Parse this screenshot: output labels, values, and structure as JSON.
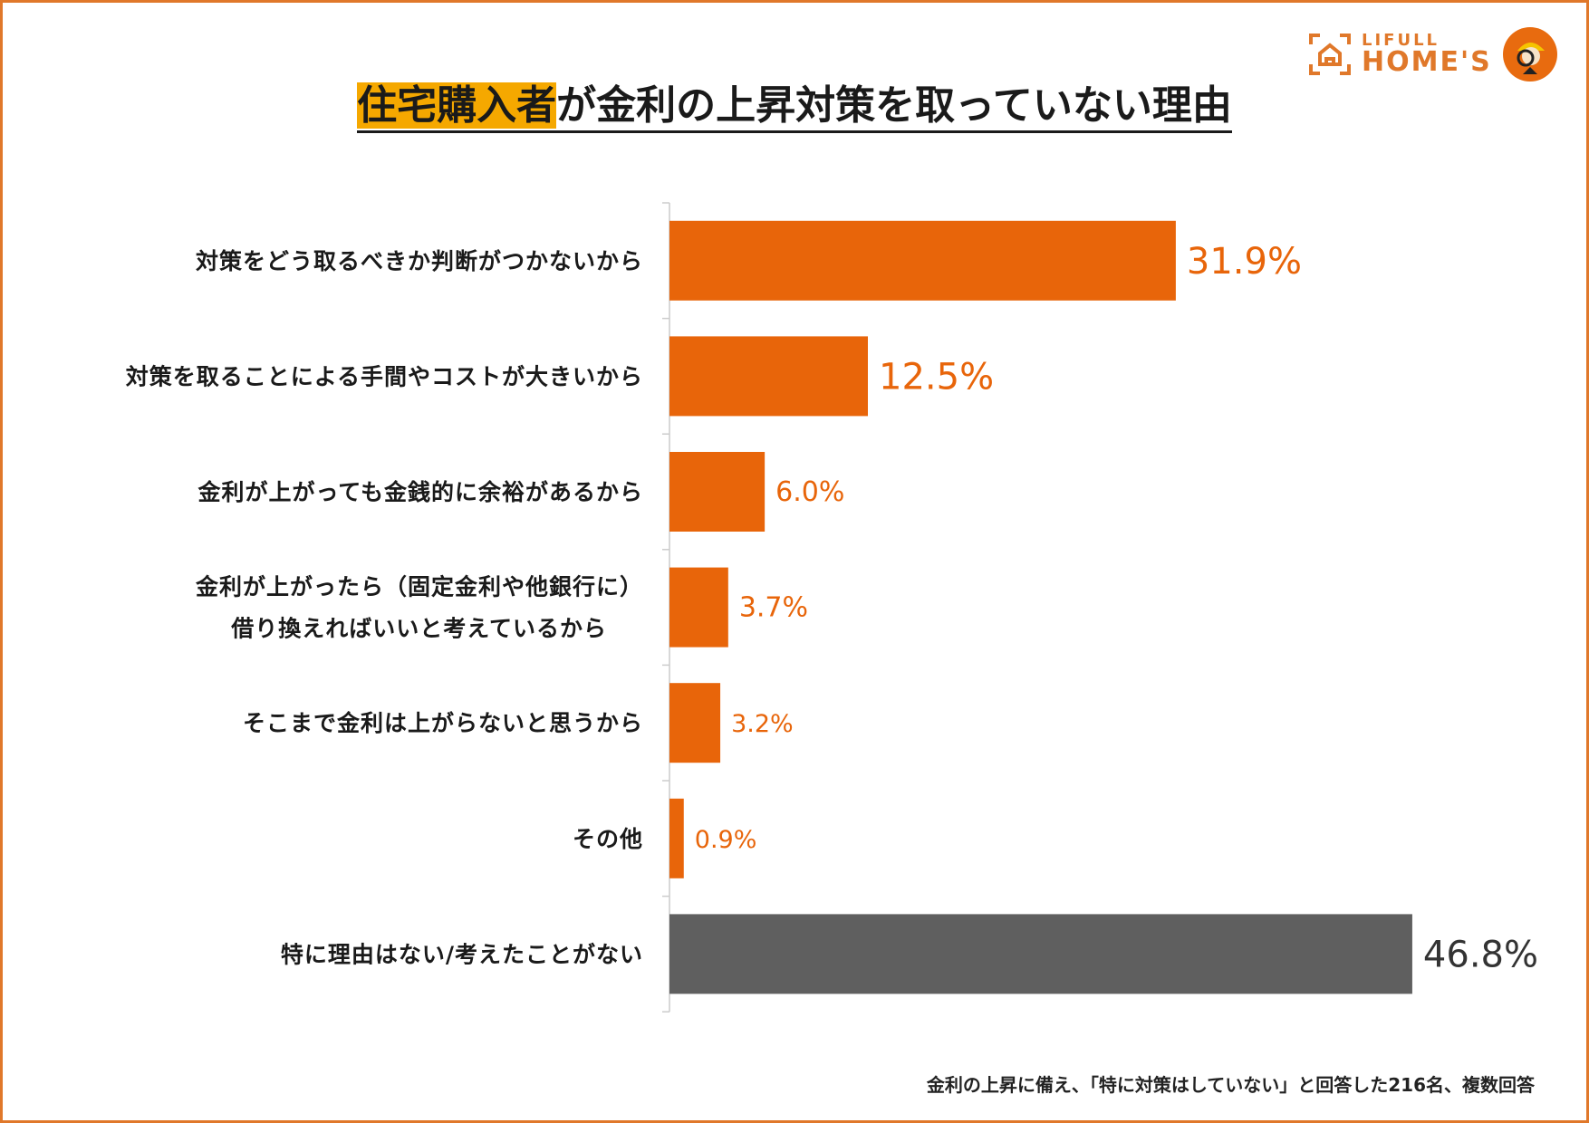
{
  "title": {
    "highlight": "住宅購入者",
    "rest": "が金利の上昇対策を取っていない理由"
  },
  "logo": {
    "line1": "LIFULL",
    "line2": "HOME'S"
  },
  "footnote": "金利の上昇に備え、「特に対策はしていない」と回答した216名、複数回答",
  "chart_data": {
    "type": "bar",
    "orientation": "horizontal",
    "unit": "%",
    "categories": [
      [
        "対策をどう取るべきか判断がつかないから"
      ],
      [
        "対策を取ることによる手間やコストが大きいから"
      ],
      [
        "金利が上がっても金銭的に余裕があるから"
      ],
      [
        "金利が上がったら（固定金利や他銀行に）",
        "借り換えればいいと考えているから"
      ],
      [
        "そこまで金利は上がらないと思うから"
      ],
      [
        "その他"
      ],
      [
        "特に理由はない/考えたことがない"
      ]
    ],
    "values": [
      31.9,
      12.5,
      6.0,
      3.7,
      3.2,
      0.9,
      46.8
    ],
    "data_labels": [
      "31.9%",
      "12.5%",
      "6.0%",
      "3.7%",
      "3.2%",
      "0.9%",
      "46.8%"
    ],
    "colors": [
      "#e8650a",
      "#e8650a",
      "#e8650a",
      "#e8650a",
      "#e8650a",
      "#e8650a",
      "#5f5f5f"
    ],
    "label_colors": [
      "#e8650a",
      "#e8650a",
      "#e8650a",
      "#e8650a",
      "#e8650a",
      "#e8650a",
      "#333333"
    ],
    "xlim": [
      0,
      50
    ],
    "grid": false
  }
}
